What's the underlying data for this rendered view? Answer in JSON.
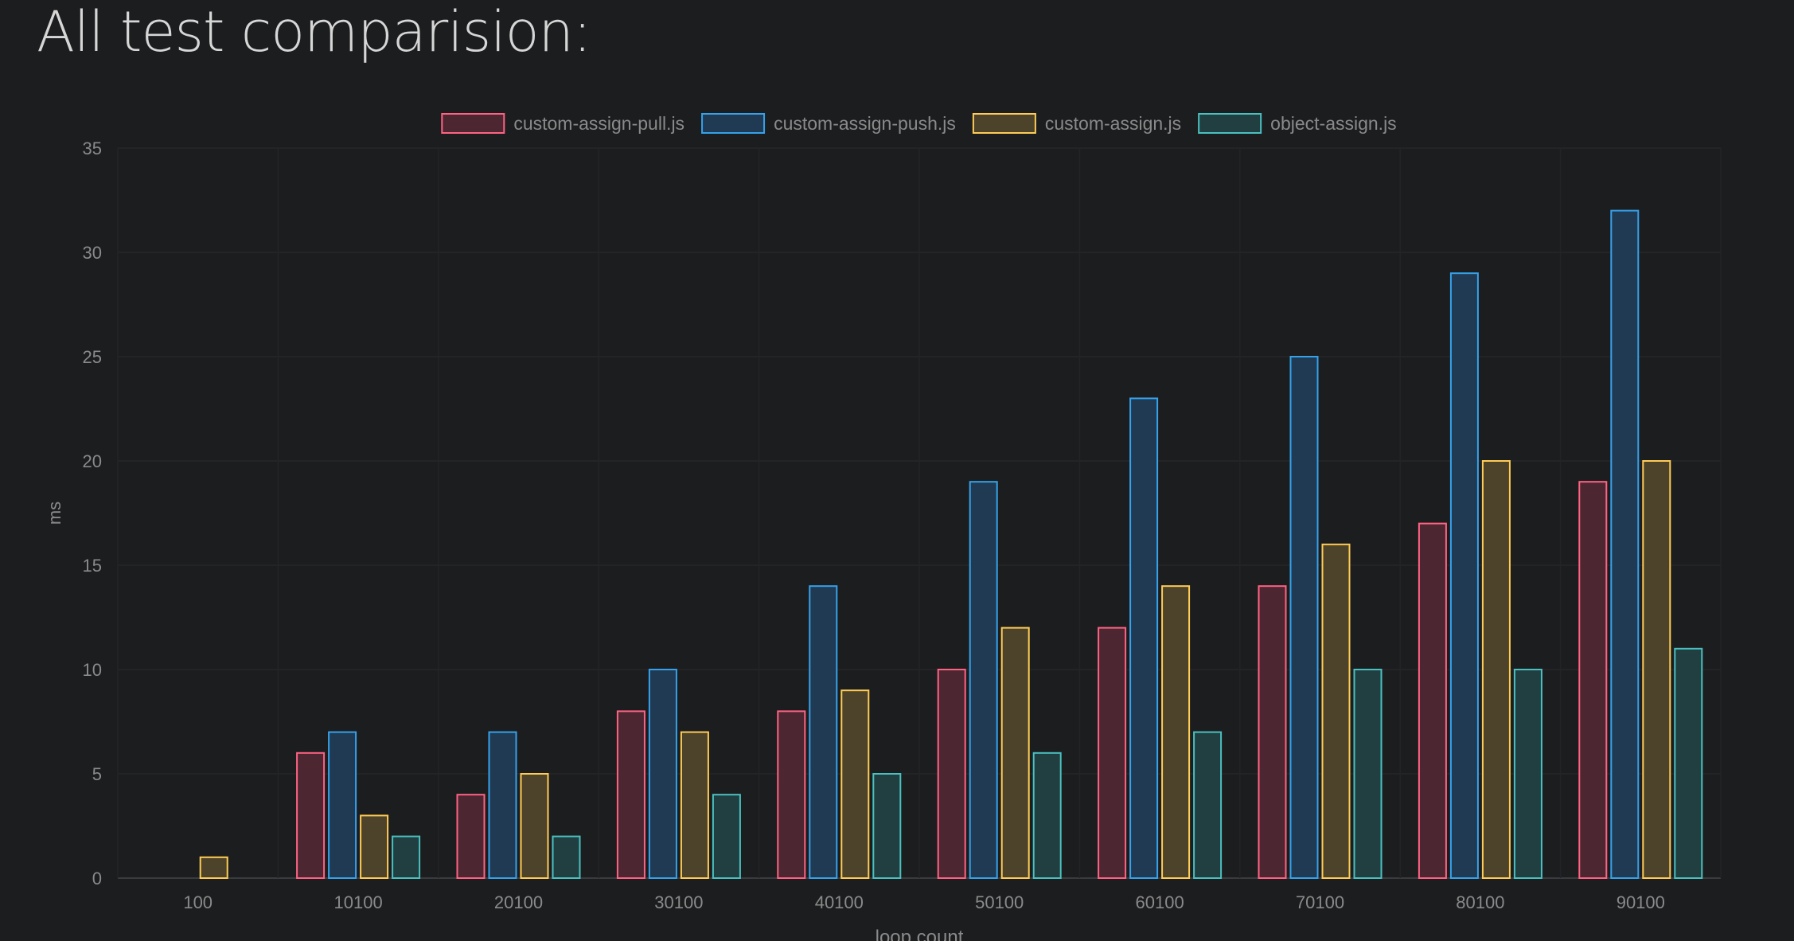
{
  "page": {
    "title": "All test comparision:"
  },
  "chart_data": {
    "type": "bar",
    "title": "",
    "xlabel": "loop count",
    "ylabel": "ms",
    "ylim": [
      0,
      35
    ],
    "yticks": [
      0,
      5,
      10,
      15,
      20,
      25,
      30,
      35
    ],
    "grid": true,
    "legend_position": "top",
    "categories": [
      "100",
      "10100",
      "20100",
      "30100",
      "40100",
      "50100",
      "60100",
      "70100",
      "80100",
      "90100"
    ],
    "series": [
      {
        "name": "custom-assign-pull.js",
        "border_color": "#ff6384",
        "fill_color": "#4c2630",
        "values": [
          0,
          6,
          4,
          8,
          8,
          10,
          12,
          14,
          17,
          19
        ]
      },
      {
        "name": "custom-assign-push.js",
        "border_color": "#36a2eb",
        "fill_color": "#1f3a52",
        "values": [
          0,
          7,
          7,
          10,
          14,
          19,
          23,
          25,
          29,
          32
        ]
      },
      {
        "name": "custom-assign.js",
        "border_color": "#ffcd56",
        "fill_color": "#4d422a",
        "values": [
          1,
          3,
          5,
          7,
          9,
          12,
          14,
          16,
          20,
          20
        ]
      },
      {
        "name": "object-assign.js",
        "border_color": "#4bc0c0",
        "fill_color": "#213f40",
        "values": [
          0,
          2,
          2,
          4,
          5,
          6,
          7,
          10,
          10,
          11
        ]
      }
    ]
  }
}
